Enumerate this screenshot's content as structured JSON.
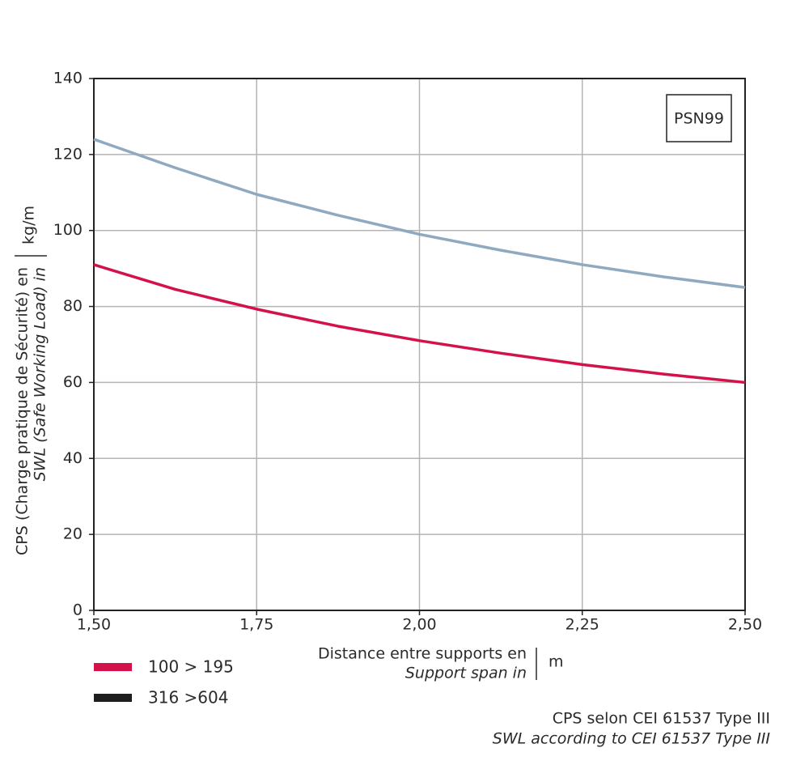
{
  "chart_data": {
    "type": "line",
    "x": [
      1.5,
      1.625,
      1.75,
      1.875,
      2.0,
      2.125,
      2.25,
      2.375,
      2.5
    ],
    "series": [
      {
        "name": "100 > 195",
        "color": "#d3124a",
        "legend_color": "#d3124a",
        "values": [
          91,
          84.5,
          79.3,
          74.8,
          71,
          67.7,
          64.7,
          62.2,
          60
        ]
      },
      {
        "name": "316 >604",
        "color": "#8fa9c0",
        "legend_color": "#1e1e1e",
        "values": [
          124,
          116.5,
          109.5,
          104,
          99,
          94.8,
          91,
          87.8,
          85
        ]
      }
    ],
    "xlim": [
      1.5,
      2.5
    ],
    "xticks": [
      {
        "value": 1.5,
        "label": "1,50"
      },
      {
        "value": 1.75,
        "label": "1,75"
      },
      {
        "value": 2.0,
        "label": "2,00"
      },
      {
        "value": 2.25,
        "label": "2,25"
      },
      {
        "value": 2.5,
        "label": "2,50"
      }
    ],
    "ylim": [
      0,
      140
    ],
    "yticks": [
      0,
      20,
      40,
      60,
      80,
      100,
      120,
      140
    ],
    "grid": true,
    "ylabel": "CPS (Charge pratique de Sécurité) en",
    "ylabel_en": "SWL (Safe Working Load) in",
    "yunit": "kg/m",
    "xlabel": "Distance entre supports en",
    "xlabel_en": "Support span in",
    "xunit": "m",
    "annotation": "PSN99",
    "footnote": [
      "CPS selon CEI 61537 Type III",
      "SWL according to CEI 61537 Type III"
    ]
  }
}
